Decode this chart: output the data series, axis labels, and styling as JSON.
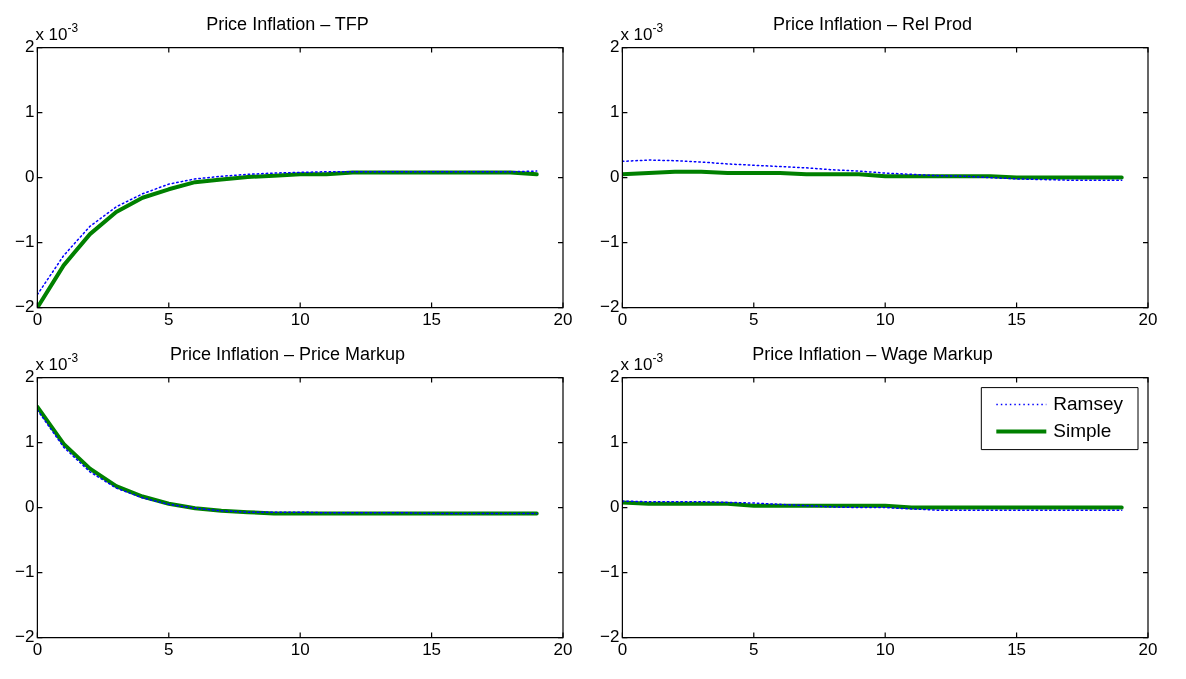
{
  "chart_data": [
    {
      "type": "line",
      "title": "Price Inflation – TFP",
      "ylabel": "x 10$^{-3}$",
      "x": [
        0,
        1,
        2,
        3,
        4,
        5,
        6,
        7,
        8,
        9,
        10,
        11,
        12,
        13,
        14,
        15,
        16,
        17,
        18,
        19
      ],
      "xlim": [
        0,
        20
      ],
      "xticks": [
        0,
        5,
        10,
        15,
        20
      ],
      "ylim": [
        -2,
        2
      ],
      "yticks": [
        -2,
        -1,
        0,
        1,
        2
      ],
      "grid": false,
      "legend": false,
      "marker": "none",
      "series": [
        {
          "color": "#0000ff",
          "line_style": "dotted",
          "values": [
            -1.8,
            -1.2,
            -0.75,
            -0.45,
            -0.25,
            -0.1,
            -0.02,
            0.02,
            0.05,
            0.07,
            0.08,
            0.09,
            0.09,
            0.09,
            0.09,
            0.09,
            0.09,
            0.09,
            0.09,
            0.1
          ]
        },
        {
          "color": "#008000",
          "line_style": "solid",
          "values": [
            -2.0,
            -1.35,
            -0.87,
            -0.53,
            -0.31,
            -0.18,
            -0.07,
            -0.03,
            0.01,
            0.03,
            0.05,
            0.05,
            0.08,
            0.08,
            0.08,
            0.08,
            0.08,
            0.08,
            0.08,
            0.05
          ]
        }
      ]
    },
    {
      "type": "line",
      "title": "Price Inflation – Rel Prod",
      "ylabel": "x 10$^{-3}$",
      "x": [
        0,
        1,
        2,
        3,
        4,
        5,
        6,
        7,
        8,
        9,
        10,
        11,
        12,
        13,
        14,
        15,
        16,
        17,
        18,
        19
      ],
      "xlim": [
        0,
        20
      ],
      "xticks": [
        0,
        5,
        10,
        15,
        20
      ],
      "ylim": [
        -2,
        2
      ],
      "yticks": [
        -2,
        -1,
        0,
        1,
        2
      ],
      "grid": false,
      "legend": false,
      "marker": "none",
      "series": [
        {
          "color": "#0000ff",
          "line_style": "dotted",
          "values": [
            0.25,
            0.27,
            0.26,
            0.24,
            0.21,
            0.19,
            0.17,
            0.15,
            0.12,
            0.1,
            0.07,
            0.05,
            0.03,
            0.02,
            0.0,
            -0.02,
            -0.03,
            -0.04,
            -0.04,
            -0.04
          ]
        },
        {
          "color": "#008000",
          "line_style": "solid",
          "values": [
            0.05,
            0.07,
            0.09,
            0.09,
            0.07,
            0.07,
            0.07,
            0.05,
            0.05,
            0.05,
            0.02,
            0.02,
            0.02,
            0.02,
            0.02,
            0,
            0,
            0,
            0,
            0
          ]
        }
      ]
    },
    {
      "type": "line",
      "title": "Price Inflation – Price Markup",
      "ylabel": "x 10$^{-3}$",
      "x": [
        0,
        1,
        2,
        3,
        4,
        5,
        6,
        7,
        8,
        9,
        10,
        11,
        12,
        13,
        14,
        15,
        16,
        17,
        18,
        19
      ],
      "xlim": [
        0,
        20
      ],
      "xticks": [
        0,
        5,
        10,
        15,
        20
      ],
      "ylim": [
        -2,
        2
      ],
      "yticks": [
        -2,
        -1,
        0,
        1,
        2
      ],
      "grid": false,
      "legend": false,
      "marker": "none",
      "series": [
        {
          "color": "#0000ff",
          "line_style": "dotted",
          "values": [
            1.5,
            0.93,
            0.55,
            0.3,
            0.15,
            0.05,
            -0.01,
            -0.05,
            -0.07,
            -0.07,
            -0.07,
            -0.08,
            -0.08,
            -0.08,
            -0.08,
            -0.09,
            -0.09,
            -0.09,
            -0.09,
            -0.09
          ]
        },
        {
          "color": "#008000",
          "line_style": "solid",
          "values": [
            1.55,
            0.98,
            0.6,
            0.33,
            0.17,
            0.06,
            -0.01,
            -0.05,
            -0.07,
            -0.09,
            -0.09,
            -0.09,
            -0.09,
            -0.09,
            -0.09,
            -0.09,
            -0.09,
            -0.09,
            -0.09,
            -0.09
          ]
        }
      ]
    },
    {
      "type": "line",
      "title": "Price Inflation – Wage Markup",
      "ylabel": "x 10$^{-3}$",
      "x": [
        0,
        1,
        2,
        3,
        4,
        5,
        6,
        7,
        8,
        9,
        10,
        11,
        12,
        13,
        14,
        15,
        16,
        17,
        18,
        19
      ],
      "xlim": [
        0,
        20
      ],
      "xticks": [
        0,
        5,
        10,
        15,
        20
      ],
      "ylim": [
        -2,
        2
      ],
      "yticks": [
        -2,
        -1,
        0,
        1,
        2
      ],
      "grid": false,
      "legend": "top right",
      "marker": "none",
      "series": [
        {
          "name": "Ramsey",
          "color": "#0000ff",
          "line_style": "dotted",
          "values": [
            0.1,
            0.09,
            0.09,
            0.09,
            0.08,
            0.07,
            0.05,
            0.03,
            0.01,
            0,
            0,
            -0.02,
            -0.04,
            -0.04,
            -0.04,
            -0.04,
            -0.04,
            -0.04,
            -0.04,
            -0.04
          ]
        },
        {
          "name": "Simple",
          "color": "#008000",
          "line_style": "solid",
          "values": [
            0.08,
            0.06,
            0.06,
            0.06,
            0.06,
            0.03,
            0.03,
            0.03,
            0.03,
            0.03,
            0.03,
            0,
            0,
            0,
            0,
            0,
            0,
            0,
            0,
            0
          ]
        }
      ]
    }
  ]
}
